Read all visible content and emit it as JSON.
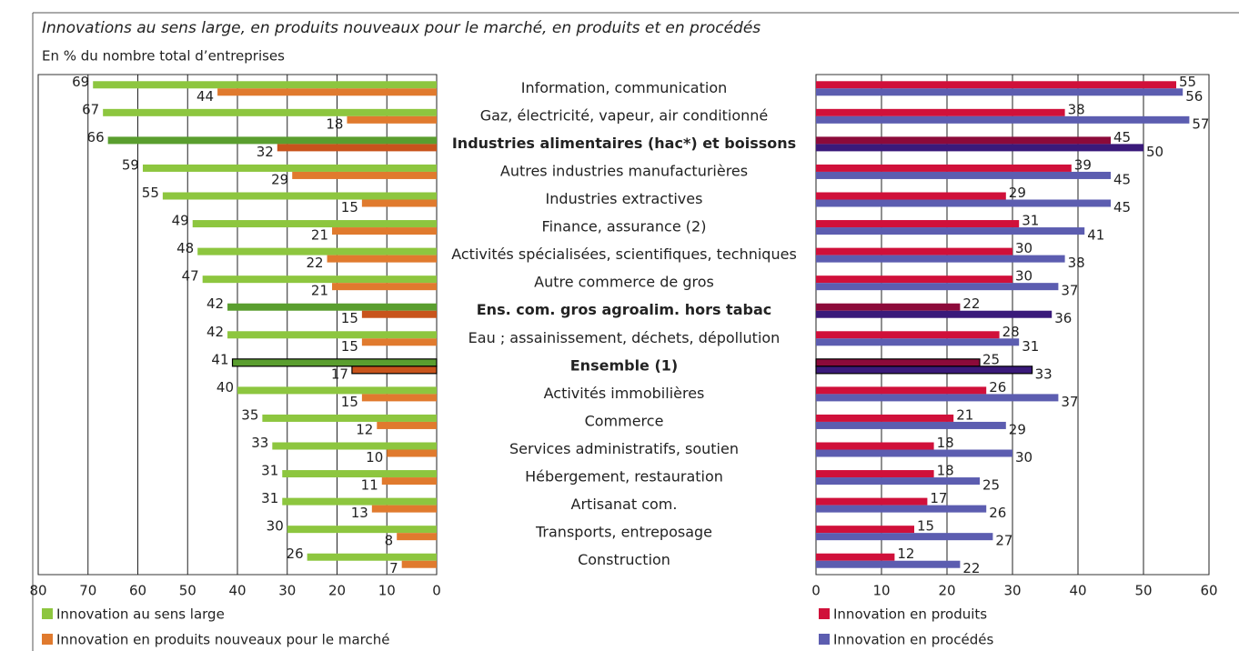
{
  "chart_data": [
    {
      "type": "bar",
      "orientation": "horizontal",
      "title": "Innovations au sens large, en produits nouveaux pour le marché, en produits et en procédés",
      "subtitle": "En % du nombre total d’entreprises",
      "categories": [
        "Information, communication",
        "Gaz, électricité, vapeur, air conditionné",
        "Industries alimentaires (hac*) et boissons",
        "Autres industries manufacturières",
        "Industries extractives",
        "Finance, assurance (2)",
        "Activités spécialisées, scientifiques, techniques",
        "Autre commerce de gros",
        "Ens. com. gros agroalim. hors tabac",
        "Eau ; assainissement, déchets, dépollution",
        "Ensemble (1)",
        "Activités immobilières",
        "Commerce",
        "Services administratifs, soutien",
        "Hébergement, restauration",
        "Artisanat com.",
        "Transports, entreposage",
        "Construction"
      ],
      "xlim": [
        80,
        0
      ],
      "xticks": [
        80,
        70,
        60,
        50,
        40,
        30,
        20,
        10,
        0
      ],
      "grid": true,
      "highlight": [
        2,
        8
      ],
      "outlined": [
        10
      ],
      "series": [
        {
          "name": "Innovation au sens large",
          "color": "#8dc63f",
          "highlight_color": "#5a9e2f",
          "values": [
            69,
            67,
            66,
            59,
            55,
            49,
            48,
            47,
            42,
            42,
            41,
            40,
            35,
            33,
            31,
            31,
            30,
            26
          ]
        },
        {
          "name": "Innovation en produits nouveaux pour le marché",
          "color": "#e07a2e",
          "highlight_color": "#c8541c",
          "values": [
            44,
            18,
            32,
            29,
            15,
            21,
            22,
            21,
            15,
            15,
            17,
            15,
            12,
            10,
            11,
            13,
            8,
            7
          ]
        }
      ]
    },
    {
      "type": "bar",
      "orientation": "horizontal",
      "xlim": [
        0,
        60
      ],
      "xticks": [
        0,
        10,
        20,
        30,
        40,
        50,
        60
      ],
      "grid": true,
      "highlight": [
        2,
        8
      ],
      "outlined": [
        10
      ],
      "series": [
        {
          "name": "Innovation en produits",
          "color": "#d0103a",
          "highlight_color": "#8c0a3a",
          "values": [
            55,
            38,
            45,
            39,
            29,
            31,
            30,
            30,
            22,
            28,
            25,
            26,
            21,
            18,
            18,
            17,
            15,
            12
          ]
        },
        {
          "name": "Innovation en procédés",
          "color": "#5c5db0",
          "highlight_color": "#3a1a7a",
          "values": [
            56,
            57,
            50,
            45,
            45,
            41,
            38,
            37,
            36,
            31,
            33,
            37,
            29,
            30,
            25,
            26,
            27,
            22
          ]
        }
      ]
    }
  ]
}
